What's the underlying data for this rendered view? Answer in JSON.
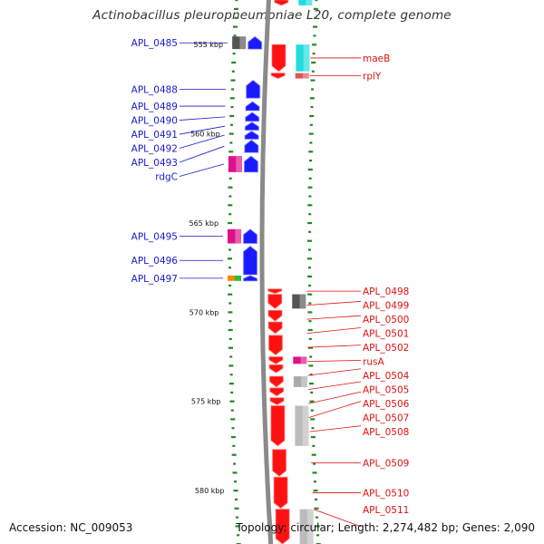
{
  "title": "Actinobacillus pleuropneumoniae L20, complete genome",
  "footer": {
    "accession": "Accession: NC_009053",
    "summary": "Topology: circular; Length: 2,274,482 bp; Genes: 2,090"
  },
  "colors": {
    "left_labels": "#1a1acc",
    "right_labels": "#dd1111",
    "tick": "#228822",
    "backbone": "#8a8a8a"
  },
  "scale": {
    "start_kbp": 552.5,
    "end_kbp": 583.0,
    "unit": "kbp"
  },
  "kbp_labels": [
    {
      "kbp": 555,
      "text": "555 kbp"
    },
    {
      "kbp": 560,
      "text": "560 kbp"
    },
    {
      "kbp": 565,
      "text": "565 kbp"
    },
    {
      "kbp": 570,
      "text": "570 kbp"
    },
    {
      "kbp": 575,
      "text": "575 kbp"
    },
    {
      "kbp": 580,
      "text": "580 kbp"
    }
  ],
  "left_genes": [
    {
      "label": "APL_0485",
      "start": 554.55,
      "end": 555.25,
      "color": "#1a1aff",
      "cog": {
        "color": "#555555"
      }
    },
    {
      "label": "APL_0488",
      "start": 557.0,
      "end": 558.0,
      "color": "#1a1aff"
    },
    {
      "label": "APL_0489",
      "start": 558.2,
      "end": 558.7,
      "color": "#1a1aff"
    },
    {
      "label": "APL_0490",
      "start": 558.8,
      "end": 559.3,
      "color": "#1a1aff"
    },
    {
      "label": "APL_0491",
      "start": 559.35,
      "end": 559.8,
      "color": "#1a1aff"
    },
    {
      "label": "APL_0492",
      "start": 559.85,
      "end": 560.3,
      "color": "#1a1aff"
    },
    {
      "label": "APL_0493",
      "start": 560.35,
      "end": 561.05,
      "color": "#1a1aff"
    },
    {
      "label": "rdgC",
      "start": 561.25,
      "end": 562.15,
      "color": "#1a1aff",
      "cog": {
        "color": "#dd1188"
      }
    },
    {
      "label": "APL_0495",
      "start": 565.35,
      "end": 566.15,
      "color": "#1a1aff",
      "cog": {
        "color": "#dd1188"
      }
    },
    {
      "label": "APL_0496",
      "start": 566.3,
      "end": 567.9,
      "color": "#1a1aff"
    },
    {
      "label": "APL_0497",
      "start": 567.95,
      "end": 568.25,
      "color": "#1a1aff",
      "cog": {
        "color": "#ff8800",
        "color2": "#33bb33"
      }
    }
  ],
  "right_genes": [
    {
      "label": "",
      "start": 552.5,
      "end": 552.8,
      "color": "#ff1111",
      "cog": {
        "color": "#22dddd"
      }
    },
    {
      "label": "maeB",
      "start": 555.0,
      "end": 556.5,
      "color": "#ff1111",
      "cog": {
        "color": "#22dddd"
      }
    },
    {
      "label": "rplY",
      "start": 556.6,
      "end": 556.9,
      "color": "#ff1111",
      "cog": {
        "color": "#dd5555"
      }
    },
    {
      "label": "APL_0498",
      "start": 568.7,
      "end": 568.95,
      "color": "#ff1111"
    },
    {
      "label": "APL_0499",
      "start": 569.0,
      "end": 569.8,
      "color": "#ff1111",
      "cog": {
        "color": "#555555"
      }
    },
    {
      "label": "APL_0500",
      "start": 569.9,
      "end": 570.5,
      "color": "#ff1111"
    },
    {
      "label": "APL_0501",
      "start": 570.55,
      "end": 571.2,
      "color": "#ff1111"
    },
    {
      "label": "APL_0502",
      "start": 571.3,
      "end": 572.4,
      "color": "#ff1111"
    },
    {
      "label": "rusA",
      "start": 572.5,
      "end": 572.9,
      "color": "#ff1111",
      "cog": {
        "color": "#dd1188"
      }
    },
    {
      "label": "APL_0504",
      "start": 572.95,
      "end": 573.4,
      "color": "#ff1111"
    },
    {
      "label": "APL_0505",
      "start": 573.6,
      "end": 574.2,
      "color": "#ff1111",
      "cog": {
        "color": "#aaaaaa"
      }
    },
    {
      "label": "APL_0506",
      "start": 574.25,
      "end": 574.7,
      "color": "#ff1111"
    },
    {
      "label": "APL_0507",
      "start": 574.8,
      "end": 575.2,
      "color": "#ff1111"
    },
    {
      "label": "APL_0508",
      "start": 575.25,
      "end": 577.5,
      "color": "#ff1111",
      "cog": {
        "color": "#bbbbbb"
      }
    },
    {
      "label": "APL_0509",
      "start": 577.7,
      "end": 579.2,
      "color": "#ff1111"
    },
    {
      "label": "APL_0510",
      "start": 579.25,
      "end": 581.0,
      "color": "#ff1111"
    },
    {
      "label": "APL_0511",
      "start": 581.05,
      "end": 583.0,
      "color": "#ff1111",
      "cog": {
        "color": "#bbbbbb"
      }
    }
  ]
}
